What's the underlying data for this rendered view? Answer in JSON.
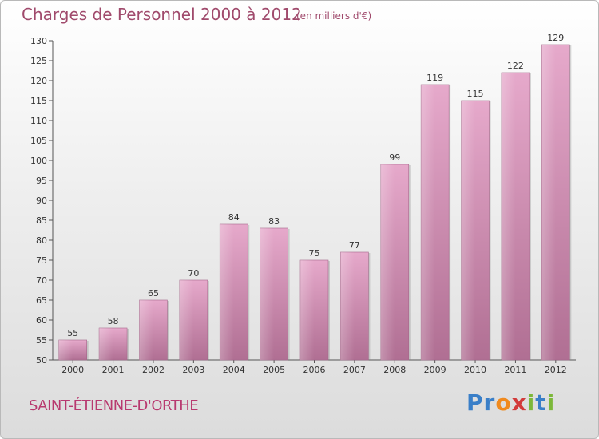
{
  "title": "Charges de Personnel 2000 à 2012",
  "unit_note": "(en milliers d'€)",
  "commune": "SAINT-ÉTIENNE-D'ORTHE",
  "logo": {
    "letters": [
      "P",
      "r",
      "o",
      "x",
      "i",
      "t",
      "i"
    ],
    "colors": [
      "#3a7fc8",
      "#3a7fc8",
      "#f08a1e",
      "#d23a3a",
      "#7cb83a",
      "#3a7fc8",
      "#7cb83a"
    ]
  },
  "colors": {
    "bar": "#c97aa5",
    "bar_light": "#e3a6c8",
    "bar_dark": "#a8678c"
  },
  "chart_data": {
    "type": "bar",
    "title": "Charges de Personnel 2000 à 2012",
    "categories": [
      "2000",
      "2001",
      "2002",
      "2003",
      "2004",
      "2005",
      "2006",
      "2007",
      "2008",
      "2009",
      "2010",
      "2011",
      "2012"
    ],
    "values": [
      55,
      58,
      65,
      70,
      84,
      83,
      75,
      77,
      99,
      119,
      115,
      122,
      129
    ],
    "ylim": [
      50,
      130
    ],
    "yticks": [
      50,
      55,
      60,
      65,
      70,
      75,
      80,
      85,
      90,
      95,
      100,
      105,
      110,
      115,
      120,
      125,
      130
    ],
    "grid": false,
    "xlabel": "",
    "ylabel": ""
  }
}
